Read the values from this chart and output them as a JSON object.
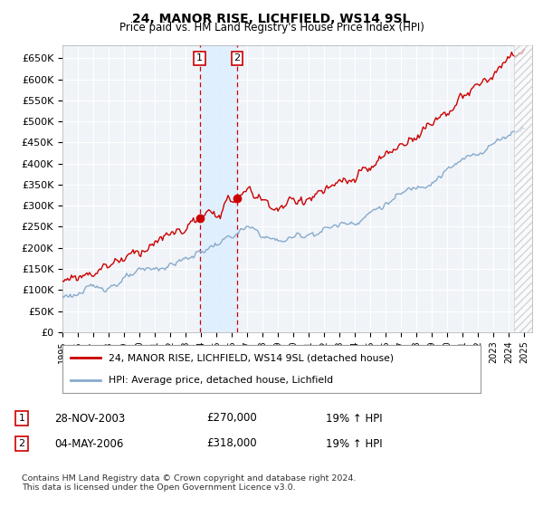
{
  "title": "24, MANOR RISE, LICHFIELD, WS14 9SL",
  "subtitle": "Price paid vs. HM Land Registry's House Price Index (HPI)",
  "ylabel_ticks": [
    "£0",
    "£50K",
    "£100K",
    "£150K",
    "£200K",
    "£250K",
    "£300K",
    "£350K",
    "£400K",
    "£450K",
    "£500K",
    "£550K",
    "£600K",
    "£650K"
  ],
  "ylim": [
    0,
    680000
  ],
  "ytick_vals": [
    0,
    50000,
    100000,
    150000,
    200000,
    250000,
    300000,
    350000,
    400000,
    450000,
    500000,
    550000,
    600000,
    650000
  ],
  "x_start_year": 1995,
  "x_end_year": 2025,
  "background_color": "#ffffff",
  "plot_bg_color": "#f0f4f8",
  "grid_color": "#ffffff",
  "sale1_time": 2003.91,
  "sale1_price": 270000,
  "sale2_time": 2006.34,
  "sale2_price": 318000,
  "legend_line1": "24, MANOR RISE, LICHFIELD, WS14 9SL (detached house)",
  "legend_line2": "HPI: Average price, detached house, Lichfield",
  "sale1_date_str": "28-NOV-2003",
  "sale1_price_str": "£270,000",
  "sale1_pct_str": "19% ↑ HPI",
  "sale2_date_str": "04-MAY-2006",
  "sale2_price_str": "£318,000",
  "sale2_pct_str": "19% ↑ HPI",
  "footnote": "Contains HM Land Registry data © Crown copyright and database right 2024.\nThis data is licensed under the Open Government Licence v3.0.",
  "line_color_red": "#cc0000",
  "line_color_blue": "#88aacc",
  "shade_color": "#ddeeff",
  "hatch_color": "#dddddd"
}
